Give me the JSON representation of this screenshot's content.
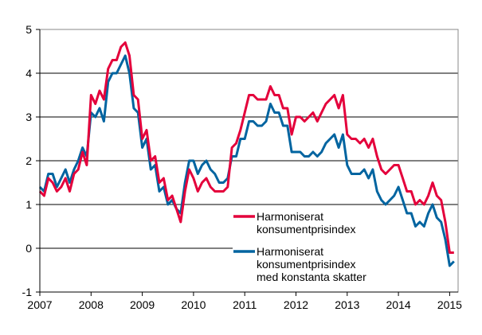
{
  "chart_data": {
    "type": "line",
    "title": "",
    "xlabel": "",
    "ylabel": "",
    "ylim": [
      -1,
      5
    ],
    "yticks": [
      "-1",
      "0",
      "1",
      "2",
      "3",
      "4",
      "5"
    ],
    "xticks": [
      "2007",
      "2008",
      "2009",
      "2010",
      "2011",
      "2012",
      "2013",
      "2014",
      "2015"
    ],
    "x_start": "2007-01",
    "x_frequency": "monthly",
    "grid": "horizontal",
    "legend_position": "center-right",
    "series": [
      {
        "name": "Harmoniserat konsumentprisindex",
        "legend_lines": [
          "Harmoniserat",
          "konsumentprisindex"
        ],
        "color": "#e4003b",
        "values": [
          1.3,
          1.2,
          1.6,
          1.5,
          1.3,
          1.4,
          1.6,
          1.3,
          1.7,
          1.8,
          2.2,
          1.9,
          3.5,
          3.3,
          3.6,
          3.4,
          4.1,
          4.3,
          4.3,
          4.6,
          4.7,
          4.4,
          3.5,
          3.4,
          2.5,
          2.7,
          2.0,
          2.1,
          1.5,
          1.6,
          1.1,
          1.2,
          0.9,
          0.6,
          1.3,
          1.8,
          1.6,
          1.3,
          1.5,
          1.6,
          1.4,
          1.3,
          1.3,
          1.3,
          1.4,
          2.3,
          2.4,
          2.7,
          3.1,
          3.5,
          3.5,
          3.4,
          3.4,
          3.4,
          3.7,
          3.5,
          3.5,
          3.2,
          3.2,
          2.6,
          3.0,
          3.0,
          2.9,
          3.0,
          3.1,
          2.9,
          3.1,
          3.3,
          3.4,
          3.5,
          3.2,
          3.5,
          2.6,
          2.5,
          2.5,
          2.4,
          2.5,
          2.3,
          2.5,
          2.1,
          1.8,
          1.7,
          1.8,
          1.9,
          1.9,
          1.6,
          1.3,
          1.3,
          1.0,
          1.1,
          1.0,
          1.2,
          1.5,
          1.2,
          1.1,
          0.6,
          -0.1,
          -0.1
        ]
      },
      {
        "name": "Harmoniserat konsumentprisindex med konstanta skatter",
        "legend_lines": [
          "Harmoniserat",
          "konsumentprisindex",
          "med konstanta skatter"
        ],
        "color": "#0064a0",
        "values": [
          1.4,
          1.3,
          1.7,
          1.7,
          1.4,
          1.6,
          1.8,
          1.5,
          1.8,
          2.0,
          2.3,
          2.1,
          3.1,
          3.0,
          3.2,
          2.9,
          3.8,
          4.0,
          4.0,
          4.2,
          4.4,
          4.0,
          3.2,
          3.1,
          2.3,
          2.5,
          1.8,
          1.9,
          1.3,
          1.4,
          1.0,
          1.1,
          0.9,
          0.8,
          1.5,
          2.0,
          2.0,
          1.7,
          1.9,
          2.0,
          1.8,
          1.7,
          1.5,
          1.5,
          1.6,
          2.1,
          2.1,
          2.5,
          2.5,
          2.9,
          2.9,
          2.8,
          2.8,
          2.9,
          3.3,
          3.1,
          3.1,
          2.8,
          2.8,
          2.2,
          2.2,
          2.2,
          2.1,
          2.1,
          2.2,
          2.1,
          2.2,
          2.4,
          2.5,
          2.6,
          2.3,
          2.6,
          1.9,
          1.7,
          1.7,
          1.7,
          1.8,
          1.6,
          1.8,
          1.3,
          1.1,
          1.0,
          1.1,
          1.2,
          1.4,
          1.1,
          0.8,
          0.8,
          0.5,
          0.6,
          0.5,
          0.8,
          1.0,
          0.7,
          0.6,
          0.2,
          -0.4,
          -0.3
        ]
      }
    ]
  }
}
